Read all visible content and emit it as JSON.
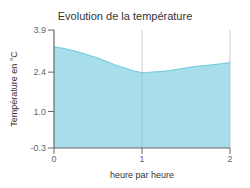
{
  "chart_data": {
    "type": "area",
    "title": "Evolution de la température",
    "x_label": "heure par heure",
    "y_label": "Température en °C",
    "x": [
      0,
      0.1,
      0.2,
      0.3,
      0.4,
      0.5,
      0.6,
      0.7,
      0.8,
      0.9,
      1.0,
      1.05,
      1.1,
      1.2,
      1.3,
      1.4,
      1.5,
      1.6,
      1.7,
      1.8,
      1.9,
      2.0
    ],
    "values": [
      3.3,
      3.25,
      3.18,
      3.1,
      3.0,
      2.9,
      2.78,
      2.65,
      2.55,
      2.45,
      2.38,
      2.38,
      2.4,
      2.42,
      2.45,
      2.5,
      2.55,
      2.6,
      2.63,
      2.66,
      2.7,
      2.74
    ],
    "color": "#6cc8dc",
    "xlim": [
      0,
      2
    ],
    "ylim": [
      -0.3,
      3.9
    ],
    "xticks": [
      0,
      1,
      2
    ],
    "yticks": [
      -0.3,
      {
        "value": 1.0,
        "label": "1.0"
      },
      2.4,
      3.9
    ],
    "grid": "x"
  }
}
